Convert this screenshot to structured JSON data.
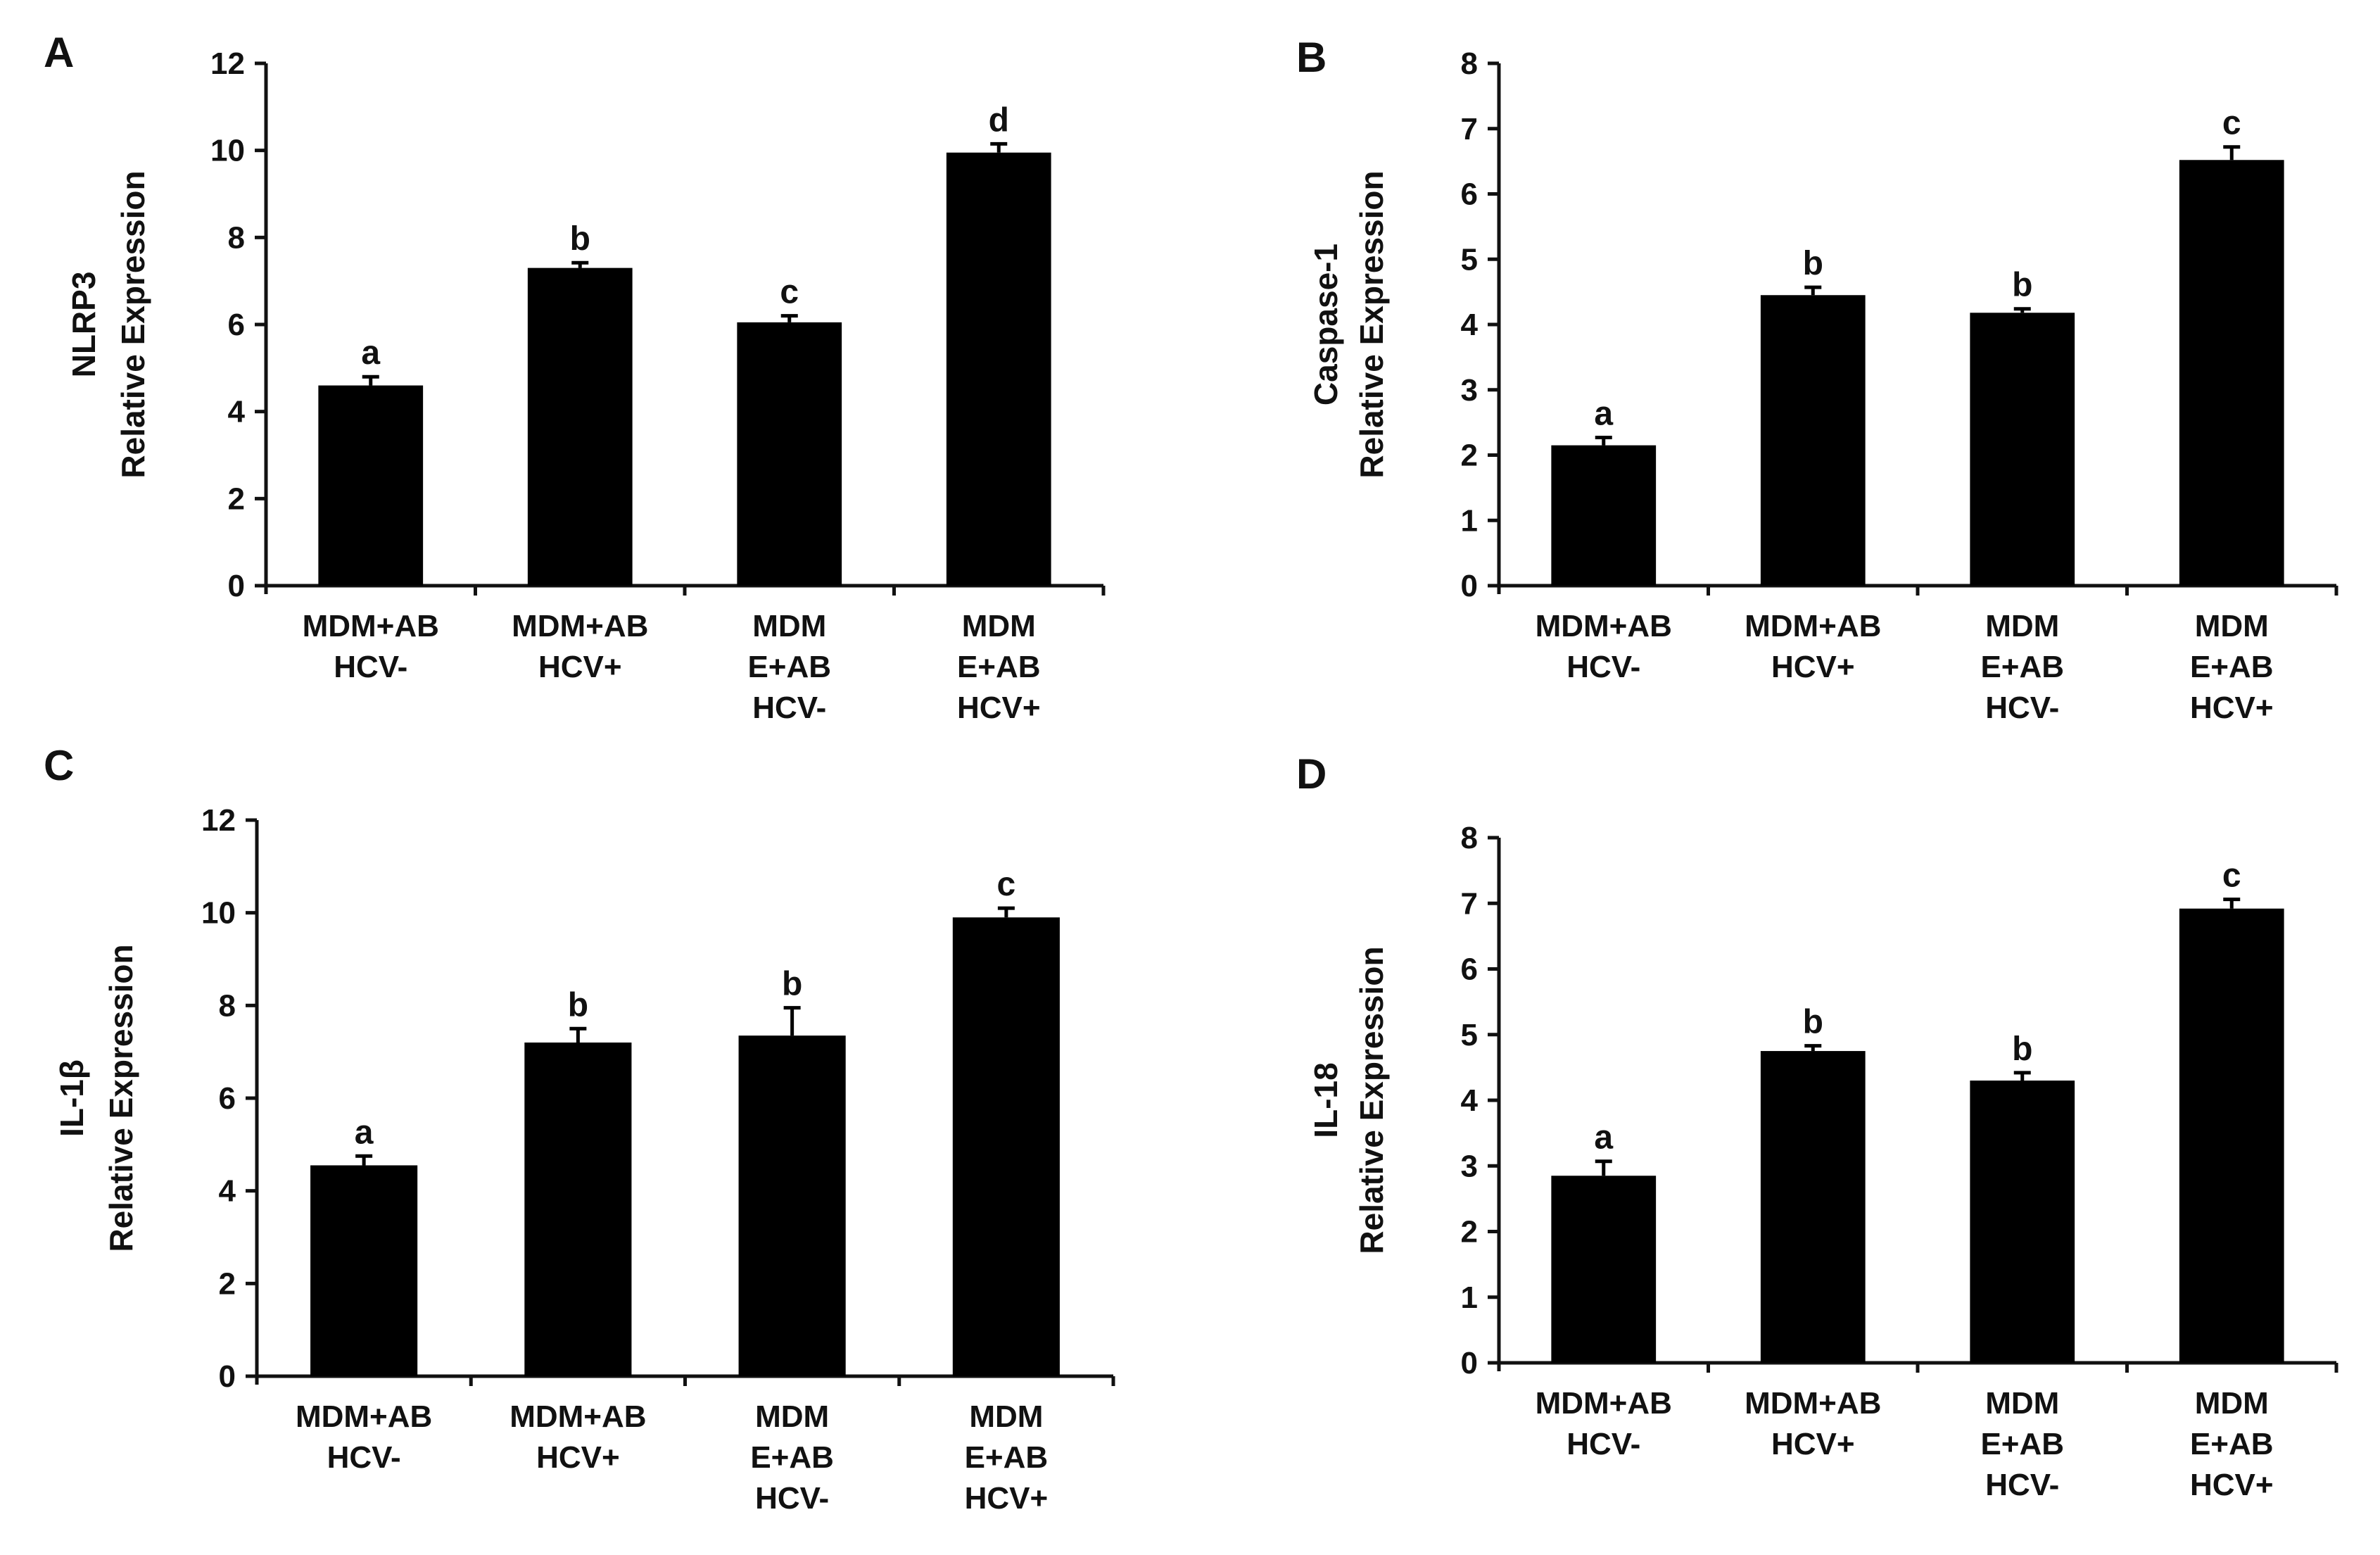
{
  "chart_data": [
    {
      "panel": "A",
      "type": "bar",
      "ylabel": [
        "NLRP3",
        "Relative Expression"
      ],
      "ylim": [
        0,
        12
      ],
      "yticks": [
        0,
        2,
        4,
        6,
        8,
        10,
        12
      ],
      "categories": [
        [
          "MDM+AB",
          "HCV-"
        ],
        [
          "MDM+AB",
          "HCV+"
        ],
        [
          "MDM",
          "E+AB",
          "HCV-"
        ],
        [
          "MDM",
          "E+AB",
          "HCV+"
        ]
      ],
      "values": [
        4.6,
        7.3,
        6.05,
        9.95
      ],
      "errors": [
        0.2,
        0.12,
        0.15,
        0.2
      ],
      "significance": [
        "a",
        "b",
        "c",
        "d"
      ]
    },
    {
      "panel": "B",
      "type": "bar",
      "ylabel": [
        "Caspase-1",
        "Relative Expression"
      ],
      "ylim": [
        0,
        8
      ],
      "yticks": [
        0,
        1,
        2,
        3,
        4,
        5,
        6,
        7,
        8
      ],
      "categories": [
        [
          "MDM+AB",
          "HCV-"
        ],
        [
          "MDM+AB",
          "HCV+"
        ],
        [
          "MDM",
          "E+AB",
          "HCV-"
        ],
        [
          "MDM",
          "E+AB",
          "HCV+"
        ]
      ],
      "values": [
        2.15,
        4.45,
        4.18,
        6.52
      ],
      "errors": [
        0.12,
        0.12,
        0.06,
        0.2
      ],
      "significance": [
        "a",
        "b",
        "b",
        "c"
      ]
    },
    {
      "panel": "C",
      "type": "bar",
      "ylabel": [
        "IL-1β",
        "Relative Expression"
      ],
      "ylim": [
        0,
        12
      ],
      "yticks": [
        0,
        2,
        4,
        6,
        8,
        10,
        12
      ],
      "categories": [
        [
          "MDM+AB",
          "HCV-"
        ],
        [
          "MDM+AB",
          "HCV+"
        ],
        [
          "MDM",
          "E+AB",
          "HCV-"
        ],
        [
          "MDM",
          "E+AB",
          "HCV+"
        ]
      ],
      "values": [
        4.55,
        7.2,
        7.35,
        9.9
      ],
      "errors": [
        0.2,
        0.3,
        0.6,
        0.2
      ],
      "significance": [
        "a",
        "b",
        "b",
        "c"
      ]
    },
    {
      "panel": "D",
      "type": "bar",
      "ylabel": [
        "IL-18",
        "Relative Expression"
      ],
      "ylim": [
        0,
        8
      ],
      "yticks": [
        0,
        1,
        2,
        3,
        4,
        5,
        6,
        7,
        8
      ],
      "categories": [
        [
          "MDM+AB",
          "HCV-"
        ],
        [
          "MDM+AB",
          "HCV+"
        ],
        [
          "MDM",
          "E+AB",
          "HCV-"
        ],
        [
          "MDM",
          "E+AB",
          "HCV+"
        ]
      ],
      "values": [
        2.85,
        4.75,
        4.3,
        6.92
      ],
      "errors": [
        0.22,
        0.08,
        0.12,
        0.14
      ],
      "significance": [
        "a",
        "b",
        "b",
        "c"
      ]
    }
  ]
}
